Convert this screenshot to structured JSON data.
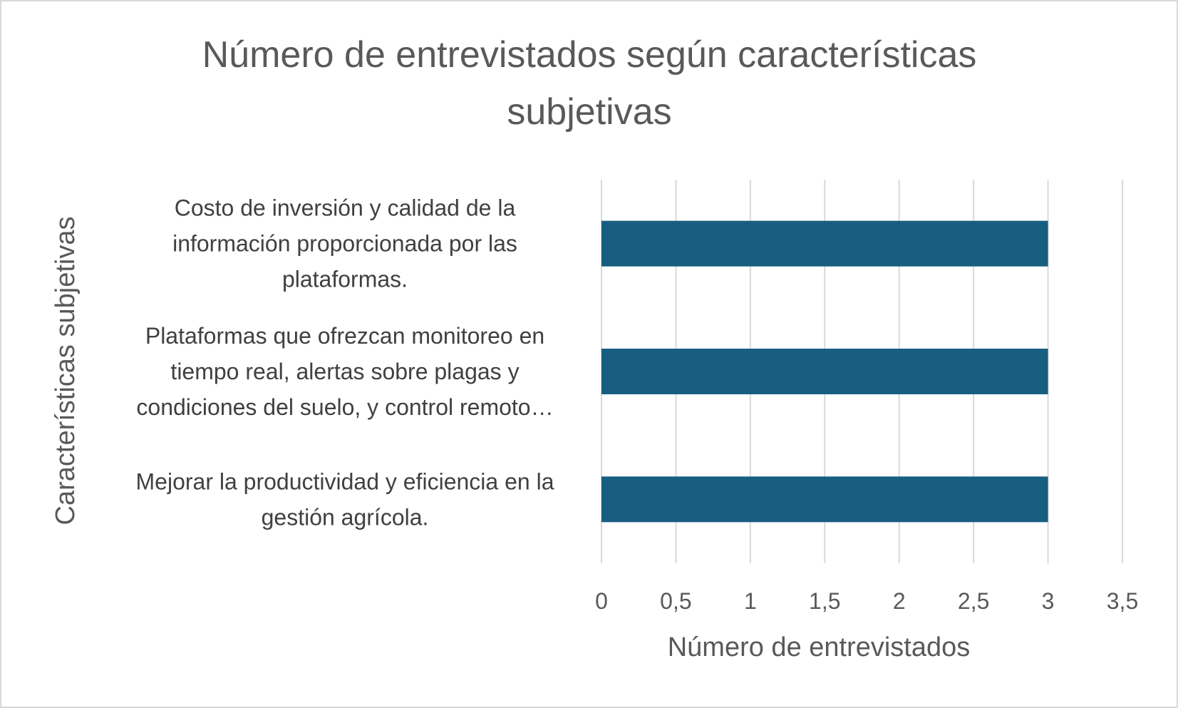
{
  "chart_data": {
    "type": "bar",
    "orientation": "horizontal",
    "title_lines": [
      "Número de entrevistados según características",
      "subjetivas"
    ],
    "categories": [
      {
        "label": "Costo de inversión y calidad de la información proporcionada por las plataformas.",
        "lines": [
          "Costo de inversión y calidad de la",
          "información proporcionada por las",
          "plataformas."
        ]
      },
      {
        "label": "Plataformas que ofrezcan monitoreo en tiempo real, alertas sobre plagas y condiciones del suelo, y control remoto…",
        "lines": [
          "Plataformas que ofrezcan monitoreo en",
          "tiempo real, alertas sobre plagas y",
          "condiciones del suelo, y control remoto…"
        ]
      },
      {
        "label": "Mejorar la productividad y eficiencia en la gestión agrícola.",
        "lines": [
          "Mejorar la productividad y eficiencia en la",
          "gestión agrícola."
        ]
      }
    ],
    "values": [
      3,
      3,
      3
    ],
    "xlabel": "Número de entrevistados",
    "ylabel": "Características subjetivas",
    "xlim": [
      0,
      3.5
    ],
    "xticks": [
      "0",
      "0,5",
      "1",
      "1,5",
      "2",
      "2,5",
      "3",
      "3,5"
    ],
    "grid": true,
    "legend": "none",
    "bar_color": "#175E80",
    "grid_color": "#d9d9d9"
  }
}
